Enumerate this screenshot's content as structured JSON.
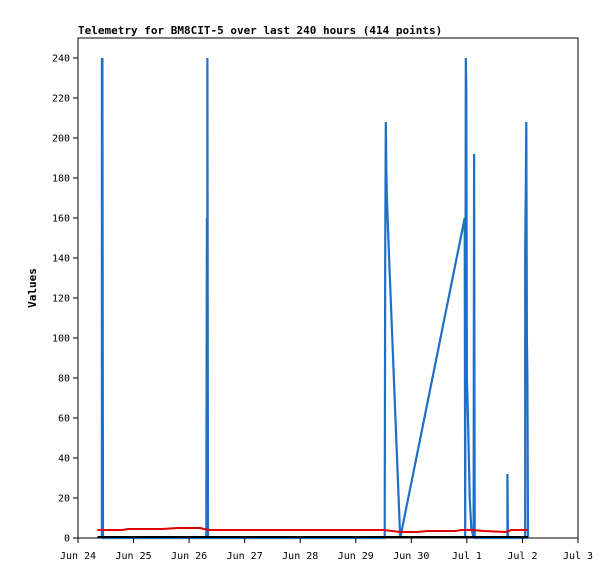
{
  "chart_data": {
    "type": "line",
    "title": "Telemetry for BM8CIT-5 over last 240 hours (414 points)",
    "ylabel": "Values",
    "xlabel": "",
    "xlim": [
      0,
      9
    ],
    "ylim": [
      0,
      250
    ],
    "x_ticks": [
      {
        "x": 0,
        "label": "Jun 24"
      },
      {
        "x": 1,
        "label": "Jun 25"
      },
      {
        "x": 2,
        "label": "Jun 26"
      },
      {
        "x": 3,
        "label": "Jun 27"
      },
      {
        "x": 4,
        "label": "Jun 28"
      },
      {
        "x": 5,
        "label": "Jun 29"
      },
      {
        "x": 6,
        "label": "Jun 30"
      },
      {
        "x": 7,
        "label": "Jul 1"
      },
      {
        "x": 8,
        "label": "Jul 2"
      },
      {
        "x": 9,
        "label": "Jul 3"
      }
    ],
    "y_ticks": [
      0,
      20,
      40,
      60,
      80,
      100,
      120,
      140,
      160,
      180,
      200,
      220,
      240
    ],
    "grid": false,
    "legend": "none",
    "series": [
      {
        "color": "#1f6fc6",
        "points": [
          [
            0.43,
            0
          ],
          [
            0.43,
            240
          ],
          [
            0.44,
            0
          ],
          [
            0.44,
            240
          ],
          [
            0.45,
            0
          ],
          [
            2.31,
            0
          ],
          [
            2.32,
            160
          ],
          [
            2.33,
            0
          ],
          [
            2.33,
            240
          ],
          [
            2.34,
            0
          ],
          [
            5.52,
            0
          ],
          [
            5.53,
            140
          ],
          [
            5.54,
            208
          ],
          [
            5.55,
            185
          ],
          [
            5.56,
            170
          ],
          [
            5.6,
            140
          ],
          [
            5.8,
            0
          ],
          [
            6.96,
            160
          ],
          [
            6.97,
            0
          ],
          [
            6.98,
            240
          ],
          [
            6.99,
            225
          ],
          [
            7.0,
            80
          ],
          [
            7.02,
            60
          ],
          [
            7.05,
            20
          ],
          [
            7.08,
            5
          ],
          [
            7.12,
            0
          ],
          [
            7.13,
            192
          ],
          [
            7.14,
            0
          ],
          [
            7.73,
            0
          ],
          [
            7.73,
            32
          ],
          [
            7.74,
            0
          ],
          [
            8.05,
            0
          ],
          [
            8.05,
            145
          ],
          [
            8.06,
            175
          ],
          [
            8.07,
            208
          ],
          [
            8.08,
            100
          ],
          [
            8.09,
            80
          ],
          [
            8.1,
            0
          ]
        ]
      },
      {
        "color": "#e00000",
        "points": [
          [
            0.35,
            4
          ],
          [
            0.8,
            4
          ],
          [
            0.9,
            4.5
          ],
          [
            1.5,
            4.5
          ],
          [
            1.8,
            5
          ],
          [
            2.2,
            5
          ],
          [
            2.35,
            4
          ],
          [
            5.5,
            4
          ],
          [
            5.8,
            3
          ],
          [
            6.1,
            3
          ],
          [
            6.3,
            3.5
          ],
          [
            6.8,
            3.5
          ],
          [
            6.9,
            4
          ],
          [
            7.1,
            4
          ],
          [
            7.3,
            3.5
          ],
          [
            7.7,
            3
          ],
          [
            7.8,
            4
          ],
          [
            8.1,
            4
          ]
        ]
      },
      {
        "color": "#000000",
        "points": [
          [
            0.35,
            0.5
          ],
          [
            8.1,
            0.5
          ]
        ]
      }
    ]
  }
}
